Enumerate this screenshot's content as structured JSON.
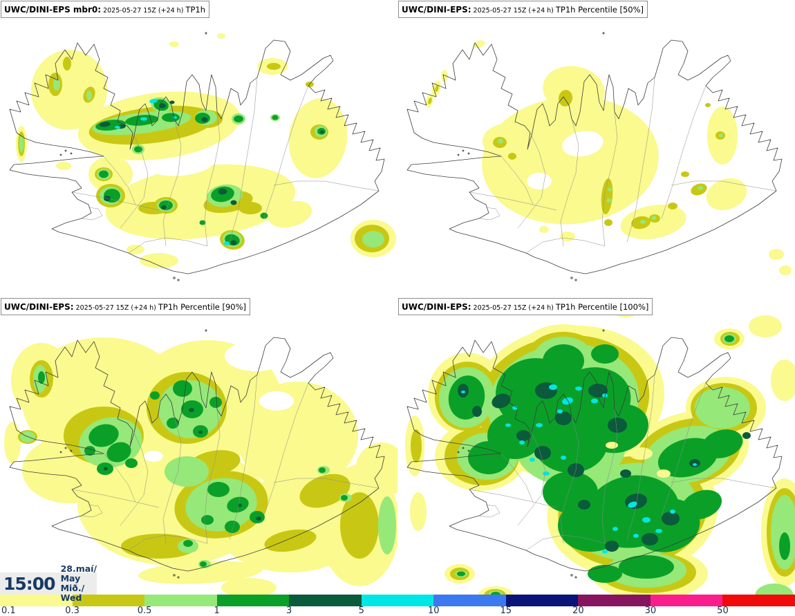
{
  "panels": [
    {
      "model": "UWC/DINI-EPS mbr0:",
      "datetime": "2025-05-27 15Z (+24 h)",
      "product": "TP1h"
    },
    {
      "model": "UWC/DINI-EPS:",
      "datetime": "2025-05-27 15Z (+24 h)",
      "product": "TP1h Percentile [50%]"
    },
    {
      "model": "UWC/DINI-EPS:",
      "datetime": "2025-05-27 15Z (+24 h)",
      "product": "TP1h Percentile [90%]"
    },
    {
      "model": "UWC/DINI-EPS:",
      "datetime": "2025-05-27 15Z (+24 h)",
      "product": "TP1h Percentile [100%]"
    }
  ],
  "time_box": {
    "clock": "15:00",
    "date": "28.maí/ May",
    "weekday": "Mið./ Wed"
  },
  "colorbar": {
    "labels": [
      "0.1",
      "0.3",
      "0.5",
      "1",
      "3",
      "5",
      "10",
      "15",
      "20",
      "30",
      "50"
    ],
    "colors": [
      "#fafa8e",
      "#c8c814",
      "#96e878",
      "#0aa028",
      "#0a5a3c",
      "#00e6e6",
      "#3c78f0",
      "#0a1478",
      "#87145f",
      "#fa1e8c",
      "#f00a0a"
    ]
  },
  "accent": {
    "navy_text": "#173a63"
  }
}
